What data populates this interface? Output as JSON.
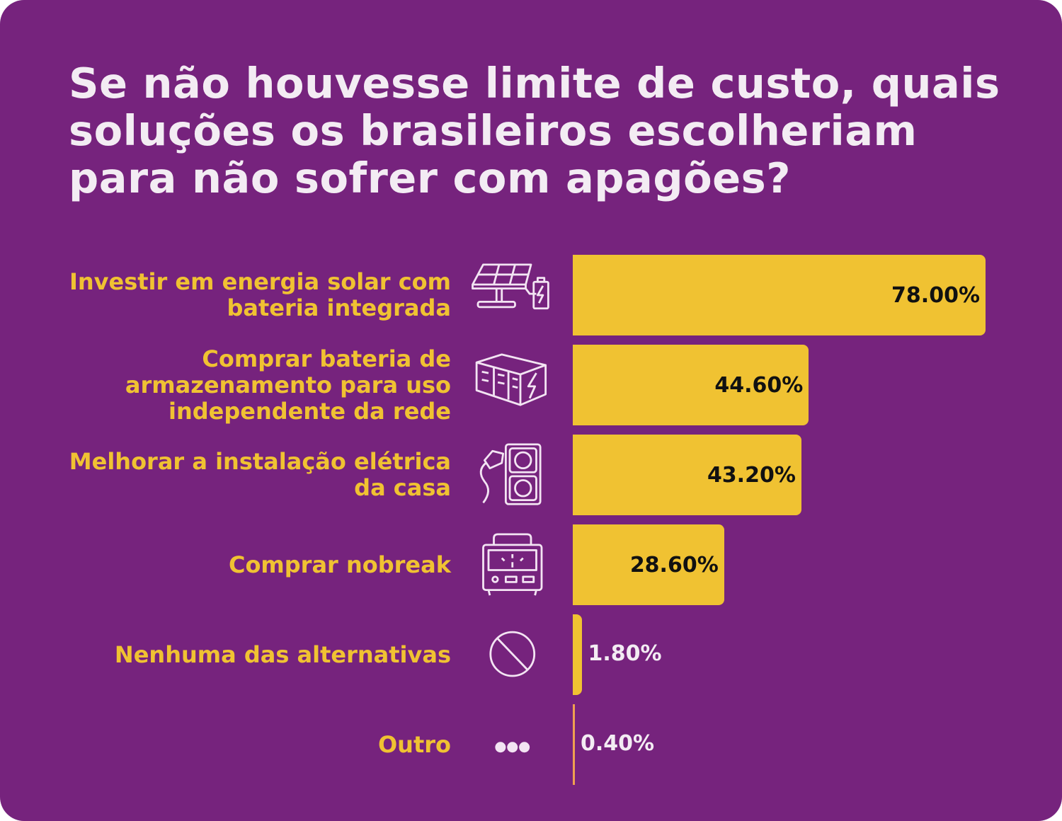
{
  "title": "Se não houvesse limite de custo, quais soluções os brasileiros escolheriam para não sofrer com apagões?",
  "colors": {
    "background": "#76237d",
    "bar": "#f0c232",
    "label": "#f0c232",
    "text": "#f3ecf3"
  },
  "chart_data": {
    "type": "bar",
    "orientation": "horizontal",
    "title": "Se não houvesse limite de custo, quais soluções os brasileiros escolheriam para não sofrer com apagões?",
    "categories": [
      "Investir em energia solar com bateria integrada",
      "Comprar bateria de armazenamento para uso independente da rede",
      "Melhorar a instalação elétrica da casa",
      "Comprar nobreak",
      "Nenhuma das alternativas",
      "Outro"
    ],
    "values": [
      78.0,
      44.6,
      43.2,
      28.6,
      1.8,
      0.4
    ],
    "value_labels": [
      "78.00%",
      "44.60%",
      "43.20%",
      "28.60%",
      "1.80%",
      "0.40%"
    ],
    "icons": [
      "solar-panel-battery-icon",
      "battery-storage-icon",
      "power-outlet-plug-icon",
      "nobreak-ups-icon",
      "prohibited-icon",
      "ellipsis-icon"
    ],
    "xlabel": "",
    "ylabel": "",
    "xlim": [
      0,
      78
    ],
    "grid": false
  }
}
